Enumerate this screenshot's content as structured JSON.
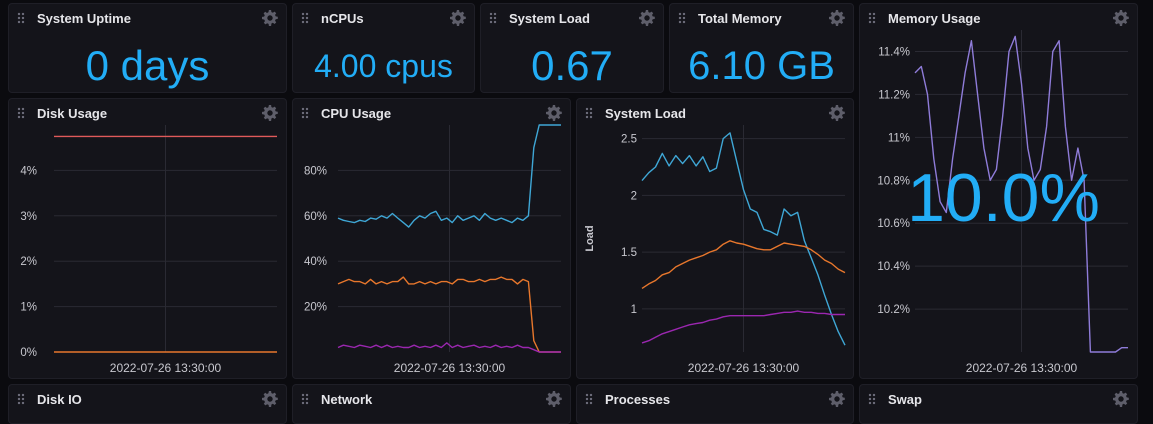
{
  "cells": {
    "uptime": {
      "title": "System Uptime",
      "value": "0 days"
    },
    "ncpus": {
      "title": "nCPUs",
      "value": "4.00 cpus"
    },
    "load_single": {
      "title": "System Load",
      "value": "0.67"
    },
    "mem_total": {
      "title": "Total Memory",
      "value": "6.10 GB"
    },
    "mem_usage": {
      "title": "Memory Usage",
      "value": "10.0%"
    },
    "disk": {
      "title": "Disk Usage"
    },
    "cpu": {
      "title": "CPU Usage"
    },
    "load": {
      "title": "System Load"
    },
    "diskio": {
      "title": "Disk IO"
    },
    "network": {
      "title": "Network"
    },
    "processes": {
      "title": "Processes"
    },
    "swap": {
      "title": "Swap"
    }
  },
  "colors": {
    "accent": "#22adf6",
    "blue": "#3fa7d6",
    "orange": "#e8772c",
    "purple": "#9b27b0",
    "lilac": "#8f7cd9",
    "red": "#e05a5a"
  },
  "icons": {
    "menu": "gear-icon",
    "drag": "drag-handle-icon"
  },
  "chart_data": [
    {
      "id": "disk",
      "type": "line",
      "x_tick_labels": [
        "2022-07-26 13:30:00"
      ],
      "y_tick_labels": [
        "0%",
        "1%",
        "2%",
        "3%",
        "4%"
      ],
      "ylim": [
        0,
        5
      ],
      "grid": true,
      "series": [
        {
          "x": [
            0,
            1
          ],
          "values": [
            4.75,
            4.75
          ],
          "color": "#e05a5a"
        },
        {
          "x": [
            0,
            1
          ],
          "values": [
            0,
            0
          ],
          "color": "#e8772c"
        }
      ]
    },
    {
      "id": "cpu",
      "type": "line",
      "x_tick_labels": [
        "2022-07-26 13:30:00"
      ],
      "y_tick_labels": [
        "20%",
        "40%",
        "60%",
        "80%"
      ],
      "ylim": [
        0,
        100
      ],
      "grid": true,
      "series": [
        {
          "values": [
            59,
            58,
            57.5,
            57,
            58,
            57.5,
            59,
            58.5,
            60,
            59,
            61,
            59,
            57,
            55,
            58,
            60,
            59,
            61,
            62,
            58,
            59,
            57,
            60,
            58,
            59,
            60,
            58,
            61,
            59,
            58,
            59,
            58,
            57,
            59,
            58,
            60,
            90,
            100,
            100,
            100,
            100,
            100
          ],
          "color": "#3fa7d6"
        },
        {
          "values": [
            30,
            31,
            32,
            31,
            31,
            30,
            32,
            30,
            31,
            30,
            31,
            31,
            33,
            30,
            30,
            31,
            30,
            31,
            30,
            31,
            31,
            30,
            32,
            32,
            31,
            31,
            32,
            31,
            32,
            32,
            33,
            32,
            32,
            30,
            32,
            31,
            5,
            0,
            0,
            0,
            0,
            0
          ],
          "color": "#e8772c"
        },
        {
          "values": [
            2,
            3,
            2.5,
            2,
            3,
            2.5,
            2,
            3,
            2,
            3,
            2,
            2.5,
            2,
            2,
            3,
            2,
            2.5,
            2,
            3,
            2,
            4,
            2,
            3,
            2,
            2.5,
            3,
            2,
            2.5,
            2,
            3,
            2,
            2.5,
            2,
            3,
            2,
            2,
            1,
            0,
            0,
            0,
            0,
            0
          ],
          "color": "#9b27b0"
        }
      ]
    },
    {
      "id": "load",
      "type": "line",
      "ylabel": "Load",
      "x_tick_labels": [
        "2022-07-26 13:30:00"
      ],
      "y_tick_labels": [
        "1",
        "1.5",
        "2",
        "2.5"
      ],
      "ylim": [
        0.62,
        2.62
      ],
      "grid": true,
      "series": [
        {
          "values": [
            2.13,
            2.2,
            2.25,
            2.37,
            2.26,
            2.35,
            2.28,
            2.35,
            2.26,
            2.34,
            2.21,
            2.24,
            2.5,
            2.55,
            2.3,
            2.05,
            1.88,
            1.85,
            1.7,
            1.68,
            1.65,
            1.88,
            1.82,
            1.85,
            1.6,
            1.45,
            1.3,
            1.12,
            0.95,
            0.8,
            0.68
          ],
          "color": "#3fa7d6"
        },
        {
          "values": [
            1.18,
            1.22,
            1.25,
            1.3,
            1.32,
            1.37,
            1.4,
            1.43,
            1.45,
            1.47,
            1.5,
            1.52,
            1.57,
            1.6,
            1.58,
            1.57,
            1.55,
            1.53,
            1.52,
            1.52,
            1.55,
            1.58,
            1.57,
            1.56,
            1.55,
            1.52,
            1.48,
            1.43,
            1.4,
            1.35,
            1.32
          ],
          "color": "#e8772c"
        },
        {
          "values": [
            0.7,
            0.72,
            0.75,
            0.78,
            0.8,
            0.82,
            0.84,
            0.86,
            0.87,
            0.88,
            0.9,
            0.91,
            0.93,
            0.94,
            0.94,
            0.94,
            0.94,
            0.94,
            0.94,
            0.95,
            0.96,
            0.97,
            0.97,
            0.98,
            0.97,
            0.97,
            0.96,
            0.96,
            0.95,
            0.95,
            0.95
          ],
          "color": "#9b27b0"
        }
      ]
    },
    {
      "id": "mem",
      "type": "line",
      "x_tick_labels": [
        "2022-07-26 13:30:00"
      ],
      "y_tick_labels": [
        "10.2%",
        "10.4%",
        "10.6%",
        "10.8%",
        "11%",
        "11.2%",
        "11.4%"
      ],
      "ylim": [
        10.0,
        11.5
      ],
      "grid": true,
      "series": [
        {
          "values": [
            11.3,
            11.33,
            11.2,
            10.9,
            10.7,
            10.65,
            10.9,
            11.1,
            11.3,
            11.45,
            11.2,
            10.95,
            10.8,
            10.85,
            11.1,
            11.4,
            11.47,
            11.25,
            10.95,
            10.8,
            10.85,
            11.05,
            11.4,
            11.45,
            11.05,
            10.8,
            10.95,
            10.8,
            10.0,
            10.0,
            10.0,
            10.0,
            10.0,
            10.02,
            10.02
          ],
          "color": "#8f7cd9"
        }
      ]
    }
  ]
}
